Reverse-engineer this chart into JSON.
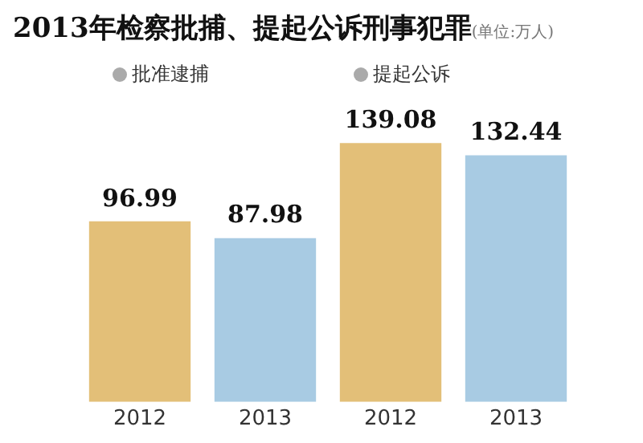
{
  "chart_data": {
    "type": "bar",
    "title": "2013年检察批捕、提起公诉刑事犯罪",
    "subtitle": "(单位:万人)",
    "categories": [
      "2012",
      "2013",
      "2012",
      "2013"
    ],
    "values": [
      96.99,
      87.98,
      139.08,
      132.44
    ],
    "colors": [
      "#e3bf78",
      "#a8cbe3",
      "#e3bf78",
      "#a8cbe3"
    ],
    "relative": false,
    "data_labels": true,
    "grid": false,
    "legend": false,
    "annotations": [
      "批准逮捕",
      "提起公诉"
    ]
  }
}
